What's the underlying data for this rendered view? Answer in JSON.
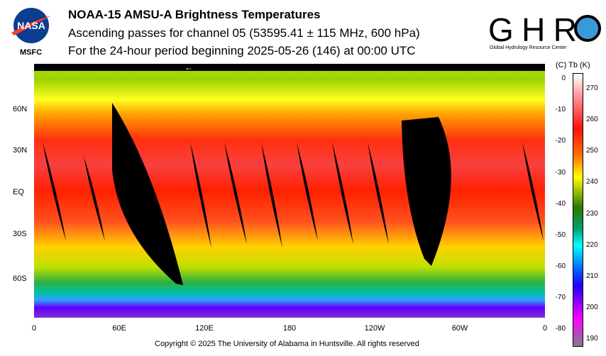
{
  "header": {
    "title": "NOAA-15 AMSU-A Brightness Temperatures",
    "subtitle1": "Ascending passes for channel 05 (53595.41 ± 115 MHz, 600 hPa)",
    "subtitle2": "For the 24-hour period beginning 2025-05-26 (146) at 00:00 UTC"
  },
  "logos": {
    "left": "NASA",
    "left_caption": "MSFC",
    "right": "GHRC",
    "right_caption": "Global Hydrology Resource Center"
  },
  "chart_data": {
    "type": "heatmap",
    "title": "NOAA-15 AMSU-A Brightness Temperatures",
    "lat_ticks": [
      "60N",
      "30N",
      "EQ",
      "30S",
      "60S"
    ],
    "lon_ticks": [
      "0",
      "60E",
      "120E",
      "180",
      "120W",
      "60W",
      "0"
    ],
    "orbit_direction_marker": "←",
    "colorbar": {
      "header": "(C)  Tb  (K)",
      "celsius_ticks": [
        "0",
        "-10",
        "-20",
        "-30",
        "-40",
        "-50",
        "-60",
        "-70",
        "-80"
      ],
      "kelvin_ticks": [
        "270",
        "260",
        "250",
        "240",
        "230",
        "220",
        "210",
        "200",
        "190"
      ],
      "range_k": [
        190,
        275
      ],
      "colors": [
        "#ffffff",
        "#ff1010",
        "#ffff00",
        "#2a7a00",
        "#00ffff",
        "#2000ff",
        "#ff00ff",
        "#808080"
      ]
    },
    "zonal_pattern_k": {
      "arctic": 245,
      "60N": 252,
      "tropics": 262,
      "60S": 248,
      "antarctic": 218
    }
  },
  "footer": {
    "copyright": "Copyright © 2025 The University of Alabama in Huntsville.  All rights reserved"
  }
}
